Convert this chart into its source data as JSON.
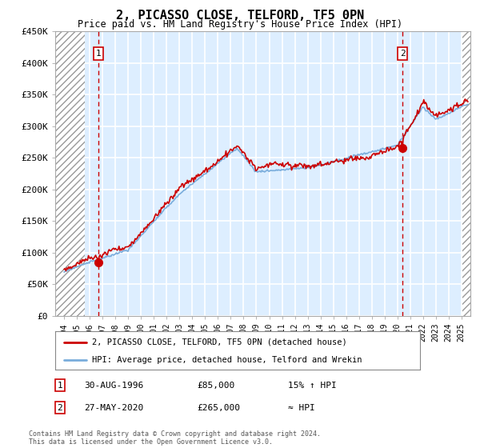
{
  "title": "2, PICASSO CLOSE, TELFORD, TF5 0PN",
  "subtitle": "Price paid vs. HM Land Registry's House Price Index (HPI)",
  "ylim": [
    0,
    450000
  ],
  "yticks": [
    0,
    50000,
    100000,
    150000,
    200000,
    250000,
    300000,
    350000,
    400000,
    450000
  ],
  "ytick_labels": [
    "£0",
    "£50K",
    "£100K",
    "£150K",
    "£200K",
    "£250K",
    "£300K",
    "£350K",
    "£400K",
    "£450K"
  ],
  "xtick_years": [
    1994,
    1995,
    1996,
    1997,
    1998,
    1999,
    2000,
    2001,
    2002,
    2003,
    2004,
    2005,
    2006,
    2007,
    2008,
    2009,
    2010,
    2011,
    2012,
    2013,
    2014,
    2015,
    2016,
    2017,
    2018,
    2019,
    2020,
    2021,
    2022,
    2023,
    2024,
    2025
  ],
  "xlim_left": 1993.3,
  "xlim_right": 2025.7,
  "hatch_left_end": 1995.6,
  "hatch_right_start": 2025.1,
  "sale1_x": 1996.65,
  "sale1_y": 85000,
  "sale1_label": "1",
  "sale2_x": 2020.4,
  "sale2_y": 265000,
  "sale2_label": "2",
  "line_color_red": "#cc0000",
  "line_color_blue": "#7aaddc",
  "background_color": "#ddeeff",
  "grid_color": "#ffffff",
  "legend_line1": "2, PICASSO CLOSE, TELFORD, TF5 0PN (detached house)",
  "legend_line2": "HPI: Average price, detached house, Telford and Wrekin",
  "note1_label": "1",
  "note1_date": "30-AUG-1996",
  "note1_price": "£85,000",
  "note1_hpi": "15% ↑ HPI",
  "note2_label": "2",
  "note2_date": "27-MAY-2020",
  "note2_price": "£265,000",
  "note2_hpi": "≈ HPI",
  "copyright": "Contains HM Land Registry data © Crown copyright and database right 2024.\nThis data is licensed under the Open Government Licence v3.0."
}
